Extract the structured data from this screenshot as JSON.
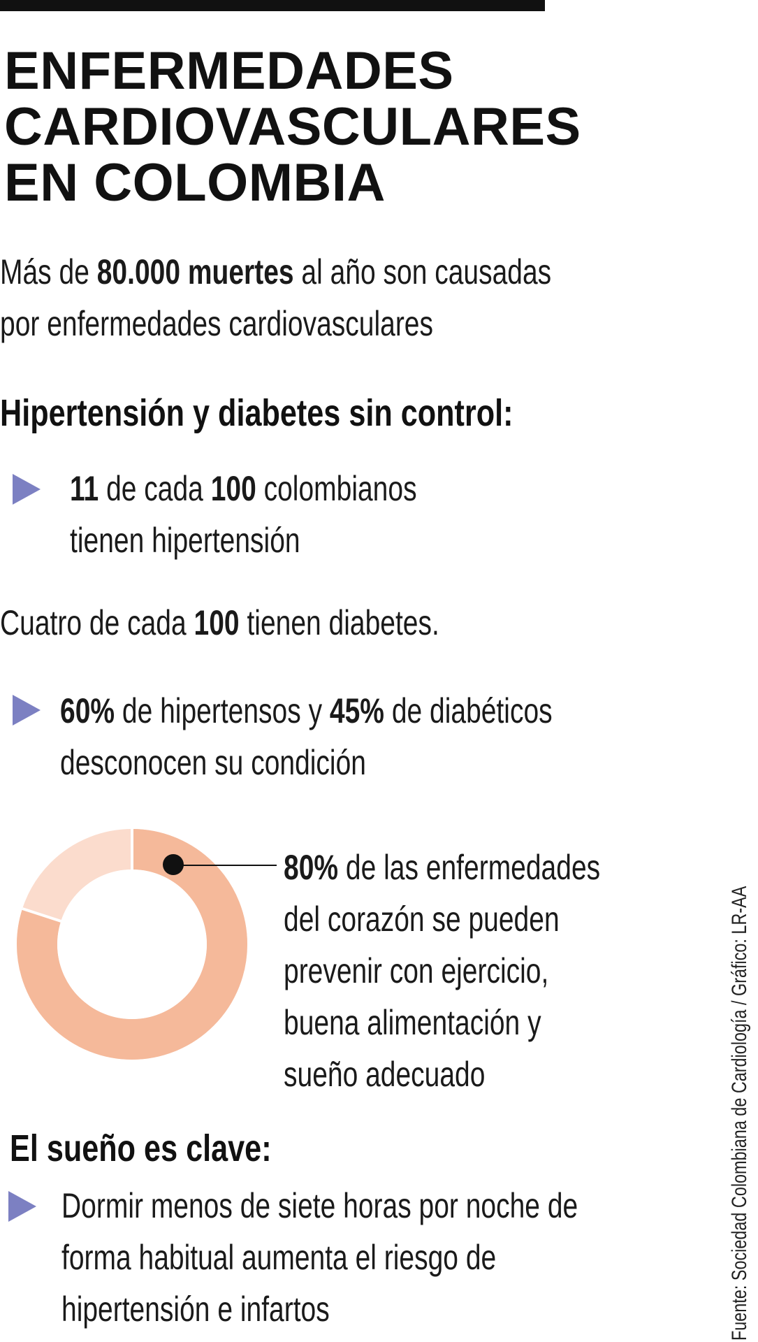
{
  "title": {
    "line1": "ENFERMEDADES",
    "line2": "CARDIOVASCULARES",
    "line3": "EN COLOMBIA"
  },
  "intro": {
    "pre": "Más de ",
    "bold": "80.000 muertes",
    "post": " al año son causadas",
    "line2": "por enfermedades cardiovasculares"
  },
  "section1": {
    "heading": "Hipertensión y diabetes sin control:",
    "bullet1": {
      "n1": "11",
      "t1": " de cada ",
      "n2": "100",
      "t2": " colombianos",
      "line2": "tienen hipertensión"
    },
    "stat": {
      "pre": "Cuatro de cada ",
      "bold": "100",
      "post": " tienen diabetes."
    },
    "bullet2": {
      "n1": "60%",
      "t1": " de hipertensos y ",
      "n2": "45%",
      "t2": " de diabéticos",
      "line2": "desconocen su condición"
    }
  },
  "donut": {
    "percent": 80,
    "colors": {
      "main": "#f5b99a",
      "rest": "#fbdccd",
      "dot": "#111111"
    },
    "callout": {
      "bold": "80%",
      "rest": " de las enfermedades",
      "line2": "del corazón se pueden",
      "line3": "prevenir con ejercicio,",
      "line4": "buena alimentación y",
      "line5": "sueño adecuado"
    }
  },
  "section2": {
    "heading": "El sueño es clave:",
    "bullet": {
      "line1": "Dormir menos de siete horas por noche de",
      "line2": "forma habitual aumenta el riesgo de",
      "line3": "hipertensión e infartos"
    }
  },
  "source": "Fuente: Sociedad Colombiana de Cardiología / Gráfico: LR-AA",
  "accent_color": "#7c80c2"
}
